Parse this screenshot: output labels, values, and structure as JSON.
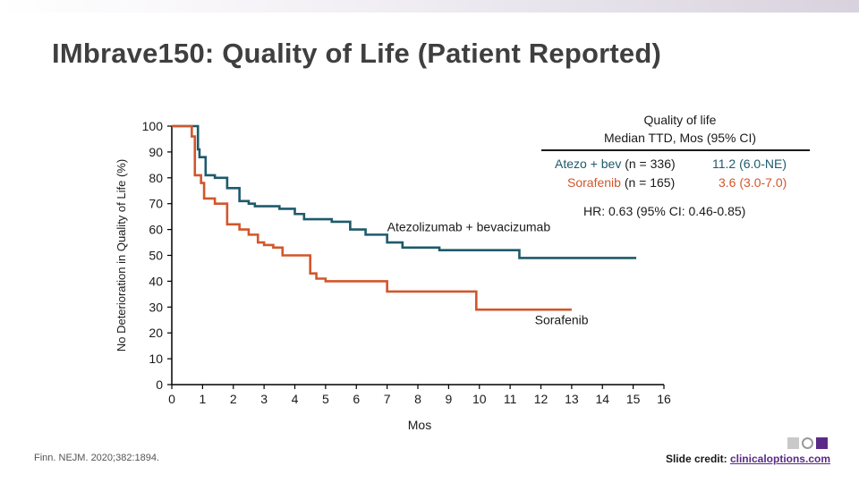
{
  "slide": {
    "title": "IMbrave150: Quality of Life (Patient Reported)",
    "citation": "Finn. NEJM. 2020;382:1894.",
    "credit_label": "Slide credit:",
    "credit_link": "clinicaloptions.com"
  },
  "legend": {
    "header_line1": "Quality of life",
    "header_line2": "Median TTD, Mos (95% CI)",
    "rows": [
      {
        "arm_name": "Atezo + bev",
        "arm_n": "(n = 336)",
        "value": "11.2 (6.0-NE)",
        "color": "#1e5a6b"
      },
      {
        "arm_name": "Sorafenib",
        "arm_n": "(n = 165)",
        "value": "3.6 (3.0-7.0)",
        "color": "#d2562b"
      }
    ],
    "hazard_ratio": "HR: 0.63 (95% CI: 0.46-0.85)"
  },
  "chart_data": {
    "type": "line",
    "subtype": "kaplan-meier-step",
    "xlabel": "Mos",
    "ylabel": "No Deterioration in Quality of Life (%)",
    "xlim": [
      0,
      16
    ],
    "ylim": [
      0,
      100
    ],
    "xticks": [
      0,
      1,
      2,
      3,
      4,
      5,
      6,
      7,
      8,
      9,
      10,
      11,
      12,
      13,
      14,
      15,
      16
    ],
    "yticks": [
      0,
      10,
      20,
      30,
      40,
      50,
      60,
      70,
      80,
      90,
      100
    ],
    "series": [
      {
        "name": "Atezolizumab + bevacizumab",
        "color": "#1e5a6b",
        "label_x": 7.0,
        "label_y": 60,
        "x": [
          0,
          0.65,
          0.85,
          0.9,
          1.1,
          1.4,
          1.8,
          2.0,
          2.2,
          2.5,
          2.7,
          3.5,
          4.0,
          4.3,
          5.2,
          5.8,
          6.3,
          7.0,
          7.5,
          8.7,
          10.0,
          11.0,
          11.3,
          14.0,
          15.1
        ],
        "y": [
          100,
          100,
          91,
          88,
          81,
          80,
          76,
          76,
          71,
          70,
          69,
          68,
          66,
          64,
          63,
          60,
          58,
          55,
          53,
          52,
          52,
          52,
          49,
          49,
          49
        ]
      },
      {
        "name": "Sorafenib",
        "color": "#d2562b",
        "label_x": 11.8,
        "label_y": 24,
        "x": [
          0,
          0.65,
          0.75,
          0.95,
          1.05,
          1.4,
          1.8,
          2.2,
          2.5,
          2.8,
          3.0,
          3.3,
          3.6,
          4.5,
          4.7,
          5.0,
          7.0,
          9.9,
          13.0
        ],
        "y": [
          100,
          96,
          81,
          78,
          72,
          70,
          62,
          60,
          58,
          55,
          54,
          53,
          50,
          43,
          41,
          40,
          36,
          29,
          29
        ]
      }
    ]
  }
}
